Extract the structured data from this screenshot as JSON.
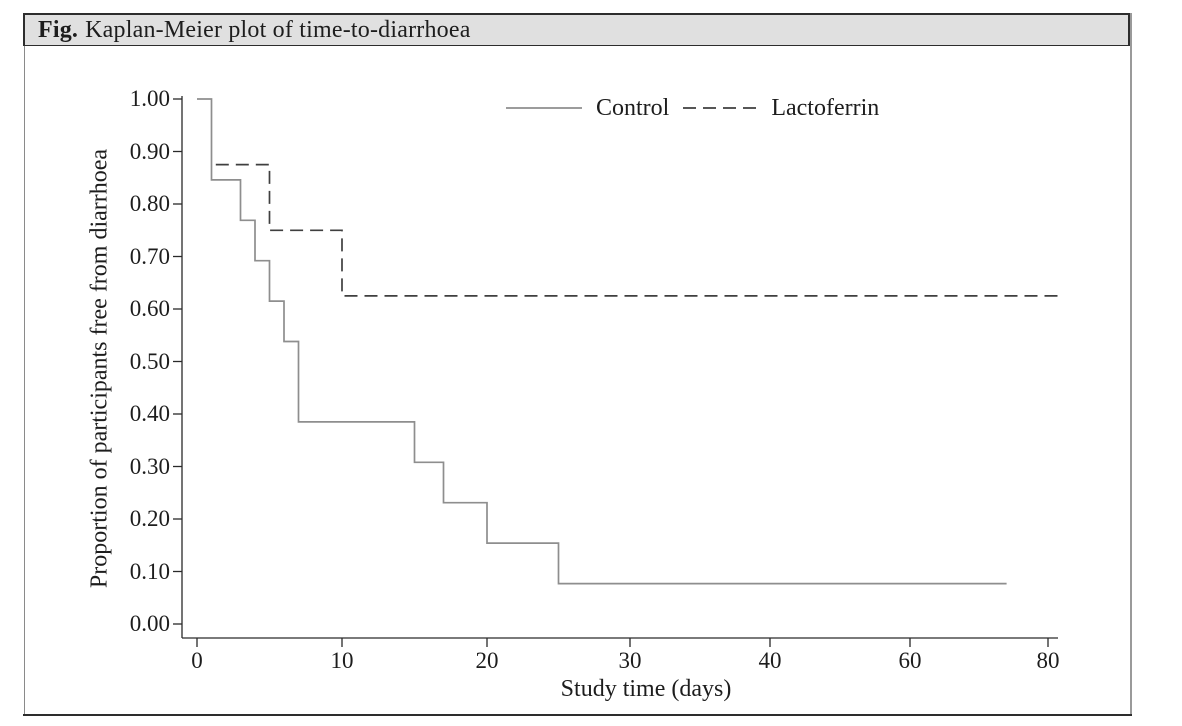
{
  "figure": {
    "title_prefix": "Fig.",
    "title_rest": "Kaplan-Meier plot of time-to-diarrhoea"
  },
  "chart_data": {
    "type": "line",
    "subtype": "kaplan_meier_step_curves",
    "title": "Kaplan-Meier plot of time-to-diarrhoea",
    "xlabel": "Study time (days)",
    "ylabel": "Proportion of participants free from diarrhoea",
    "x_ticks": [
      0,
      10,
      20,
      30,
      40,
      60,
      80
    ],
    "x_axis_note": "ticks equally spaced; day scale is compressed after day 40 (20-day gaps drawn like 10-day gaps)",
    "y_ticks": [
      "0.00",
      "0.10",
      "0.20",
      "0.30",
      "0.40",
      "0.50",
      "0.60",
      "0.70",
      "0.80",
      "0.90",
      "1.00"
    ],
    "ylim": [
      0,
      1
    ],
    "grid": false,
    "legend_position": "inside-top-center",
    "series": [
      {
        "name": "Control",
        "line_style": "solid",
        "color": "#8e8e8e",
        "start": [
          0,
          1.0
        ],
        "steps": [
          [
            1,
            0.846
          ],
          [
            3,
            0.769
          ],
          [
            4,
            0.692
          ],
          [
            5,
            0.615
          ],
          [
            6,
            0.538
          ],
          [
            7,
            0.385
          ],
          [
            15,
            0.308
          ],
          [
            17,
            0.231
          ],
          [
            20,
            0.154
          ],
          [
            25,
            0.077
          ]
        ],
        "end_day": 74
      },
      {
        "name": "Lactoferrin",
        "line_style": "dashed",
        "color": "#3f3f3f",
        "start": [
          1.3,
          0.875
        ],
        "steps": [
          [
            5,
            0.75
          ],
          [
            10,
            0.625
          ]
        ],
        "end_day": 82
      }
    ]
  }
}
